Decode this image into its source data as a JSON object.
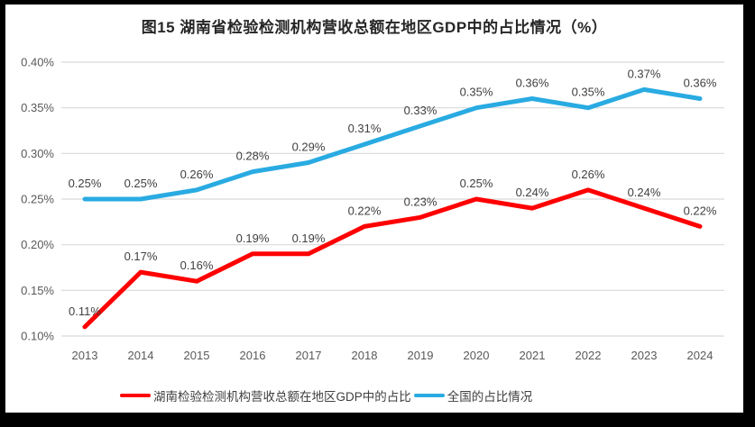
{
  "colors": {
    "background": "#000000",
    "panel": "#ffffff",
    "gridline": "#d9d9d9",
    "axis_tick_text": "#595959",
    "data_label_text": "#404040",
    "title_text": "#262626",
    "hunan_line": "#FF0000",
    "national_line": "#29ABE2"
  },
  "chart_data": {
    "type": "line",
    "title": "图15 湖南省检验检测机构营收总额在地区GDP中的占比情况（%）",
    "categories": [
      "2013",
      "2014",
      "2015",
      "2016",
      "2017",
      "2018",
      "2019",
      "2020",
      "2021",
      "2022",
      "2023",
      "2024"
    ],
    "series": [
      {
        "name": "湖南检验检测机构营收总额在地区GDP中的占比",
        "color": "#FF0000",
        "values": [
          0.11,
          0.17,
          0.16,
          0.19,
          0.19,
          0.22,
          0.23,
          0.25,
          0.24,
          0.26,
          0.24,
          0.22
        ],
        "labels": [
          "0.11%",
          "0.17%",
          "0.16%",
          "0.19%",
          "0.19%",
          "0.22%",
          "0.23%",
          "0.25%",
          "0.24%",
          "0.26%",
          "0.24%",
          "0.22%"
        ]
      },
      {
        "name": "全国的占比情况",
        "color": "#29ABE2",
        "values": [
          0.25,
          0.25,
          0.26,
          0.28,
          0.29,
          0.31,
          0.33,
          0.35,
          0.36,
          0.35,
          0.37,
          0.36
        ],
        "labels": [
          "0.25%",
          "0.25%",
          "0.26%",
          "0.28%",
          "0.29%",
          "0.31%",
          "0.33%",
          "0.35%",
          "0.36%",
          "0.35%",
          "0.37%",
          "0.36%"
        ]
      }
    ],
    "xlabel": "",
    "ylabel": "",
    "ylim": [
      0.1,
      0.4
    ],
    "y_ticks": {
      "values": [
        0.1,
        0.15,
        0.2,
        0.25,
        0.3,
        0.35,
        0.4
      ],
      "labels": [
        "0.10%",
        "0.15%",
        "0.20%",
        "0.25%",
        "0.30%",
        "0.35%",
        "0.40%"
      ]
    },
    "grid": "horizontal",
    "legend_position": "bottom",
    "data_labels_shown": true
  }
}
